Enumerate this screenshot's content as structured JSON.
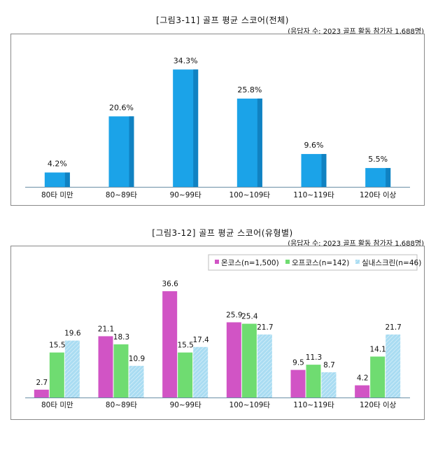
{
  "chart1": {
    "title": "[그림3-11] 골프 평균 스코어(전체)",
    "note": "(응답자 수: 2023 골프 활동 참가자 1,688명)"
  },
  "chart2": {
    "title": "[그림3-12] 골프 평균 스코어(유형별)",
    "note": "(응답자 수: 2023 골프 활동 참가자 1,688명)"
  },
  "colors": {
    "overall": "#1ba3e8",
    "overall_side": "#1082c2",
    "oncourse": "#d154c5",
    "offcourse": "#6fdc71",
    "screen": "#a9dcf2",
    "axis": "#6b8fa6"
  },
  "chart_data": [
    {
      "type": "bar",
      "categories": [
        "80타 미만",
        "80~89타",
        "90~99타",
        "100~109타",
        "110~119타",
        "120타 이상"
      ],
      "values": [
        4.2,
        20.6,
        34.3,
        25.8,
        9.6,
        5.5
      ],
      "value_labels": [
        "4.2%",
        "20.6%",
        "34.3%",
        "25.8%",
        "9.6%",
        "5.5%"
      ],
      "ylim": [
        0,
        36
      ],
      "grid": false,
      "legend": "none"
    },
    {
      "type": "bar",
      "categories": [
        "80타 미만",
        "80~89타",
        "90~99타",
        "100~109타",
        "110~119타",
        "120타 이상"
      ],
      "series": [
        {
          "name": "온코스(n=1,500)",
          "values": [
            2.7,
            21.1,
            36.6,
            25.9,
            9.5,
            4.2
          ],
          "labels": [
            "2.7",
            "21.1",
            "36.6",
            "25.9",
            "9.5",
            "4.2"
          ]
        },
        {
          "name": "오프코스(n=142)",
          "values": [
            15.5,
            18.3,
            15.5,
            25.4,
            11.3,
            14.1
          ],
          "labels": [
            "15.5",
            "18.3",
            "15.5",
            "25.4",
            "11.3",
            "14.1"
          ]
        },
        {
          "name": "실내스크린(n=46)",
          "values": [
            19.6,
            10.9,
            17.4,
            21.7,
            8.7,
            21.7
          ],
          "labels": [
            "19.6",
            "10.9",
            "17.4",
            "21.7",
            "8.7",
            "21.7"
          ]
        }
      ],
      "ylim": [
        0,
        40
      ],
      "grid": false,
      "legend": "top-right"
    }
  ]
}
